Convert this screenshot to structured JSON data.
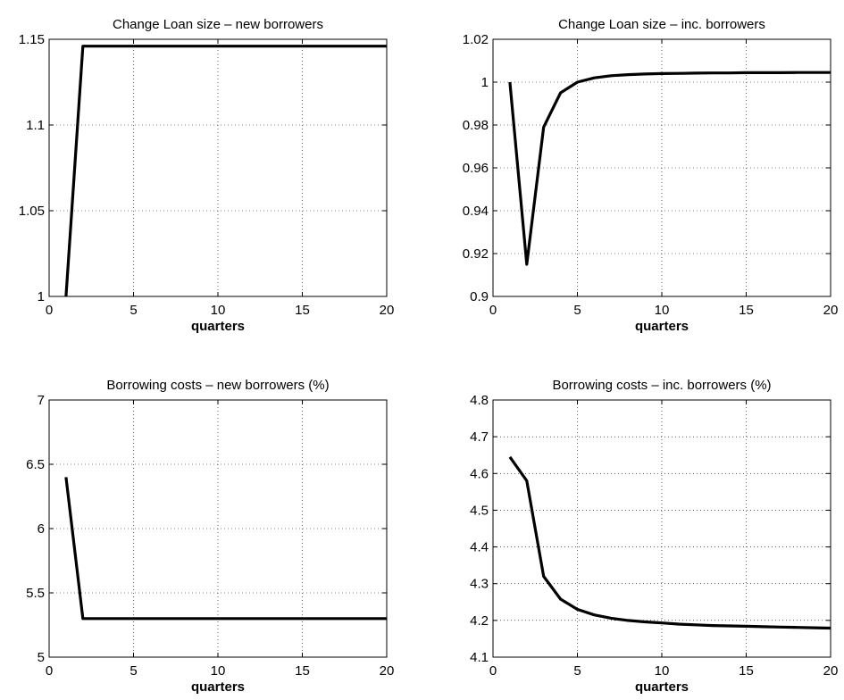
{
  "chart_data": [
    {
      "type": "line",
      "title": "Change Loan size – new borrowers",
      "xlabel": "quarters",
      "ylabel": "",
      "xlim": [
        0,
        20
      ],
      "ylim": [
        1,
        1.15
      ],
      "xticks": [
        "0",
        "5",
        "10",
        "15",
        "20"
      ],
      "yticks": [
        "1",
        "1.05",
        "1.1",
        "1.15"
      ],
      "grid": true,
      "series": [
        {
          "x": [
            1,
            2,
            3,
            4,
            5,
            6,
            7,
            8,
            9,
            10,
            11,
            12,
            13,
            14,
            15,
            16,
            17,
            18,
            19,
            20
          ],
          "values": [
            1.0,
            1.146,
            1.146,
            1.146,
            1.146,
            1.146,
            1.146,
            1.146,
            1.146,
            1.146,
            1.146,
            1.146,
            1.146,
            1.146,
            1.146,
            1.146,
            1.146,
            1.146,
            1.146,
            1.146
          ]
        }
      ]
    },
    {
      "type": "line",
      "title": "Change Loan size – inc. borrowers",
      "xlabel": "quarters",
      "ylabel": "",
      "xlim": [
        0,
        20
      ],
      "ylim": [
        0.9,
        1.02
      ],
      "xticks": [
        "0",
        "5",
        "10",
        "15",
        "20"
      ],
      "yticks": [
        "0.9",
        "0.92",
        "0.94",
        "0.96",
        "0.98",
        "1",
        "1.02"
      ],
      "grid": true,
      "series": [
        {
          "x": [
            1,
            2,
            3,
            4,
            5,
            6,
            7,
            8,
            9,
            10,
            11,
            12,
            13,
            14,
            15,
            16,
            17,
            18,
            19,
            20
          ],
          "values": [
            1.0,
            0.915,
            0.979,
            0.995,
            1.0,
            1.002,
            1.003,
            1.0035,
            1.0038,
            1.004,
            1.0041,
            1.0042,
            1.0043,
            1.0043,
            1.0044,
            1.0044,
            1.0044,
            1.0045,
            1.0045,
            1.0045
          ]
        }
      ]
    },
    {
      "type": "line",
      "title": "Borrowing costs – new borrowers (%)",
      "xlabel": "quarters",
      "ylabel": "",
      "xlim": [
        0,
        20
      ],
      "ylim": [
        5,
        7
      ],
      "xticks": [
        "0",
        "5",
        "10",
        "15",
        "20"
      ],
      "yticks": [
        "5",
        "5.5",
        "6",
        "6.5",
        "7"
      ],
      "grid": true,
      "series": [
        {
          "x": [
            1,
            2,
            3,
            4,
            5,
            6,
            7,
            8,
            9,
            10,
            11,
            12,
            13,
            14,
            15,
            16,
            17,
            18,
            19,
            20
          ],
          "values": [
            6.4,
            5.3,
            5.3,
            5.3,
            5.3,
            5.3,
            5.3,
            5.3,
            5.3,
            5.3,
            5.3,
            5.3,
            5.3,
            5.3,
            5.3,
            5.3,
            5.3,
            5.3,
            5.3,
            5.3
          ]
        }
      ]
    },
    {
      "type": "line",
      "title": "Borrowing costs – inc. borrowers (%)",
      "xlabel": "quarters",
      "ylabel": "",
      "xlim": [
        0,
        20
      ],
      "ylim": [
        4.1,
        4.8
      ],
      "xticks": [
        "0",
        "5",
        "10",
        "15",
        "20"
      ],
      "yticks": [
        "4.1",
        "4.2",
        "4.3",
        "4.4",
        "4.5",
        "4.6",
        "4.7",
        "4.8"
      ],
      "grid": true,
      "series": [
        {
          "x": [
            1,
            2,
            3,
            4,
            5,
            6,
            7,
            8,
            9,
            10,
            11,
            12,
            13,
            14,
            15,
            16,
            17,
            18,
            19,
            20
          ],
          "values": [
            4.645,
            4.58,
            4.32,
            4.258,
            4.23,
            4.215,
            4.206,
            4.2,
            4.196,
            4.193,
            4.19,
            4.188,
            4.186,
            4.185,
            4.184,
            4.183,
            4.182,
            4.181,
            4.18,
            4.179
          ]
        }
      ]
    }
  ]
}
